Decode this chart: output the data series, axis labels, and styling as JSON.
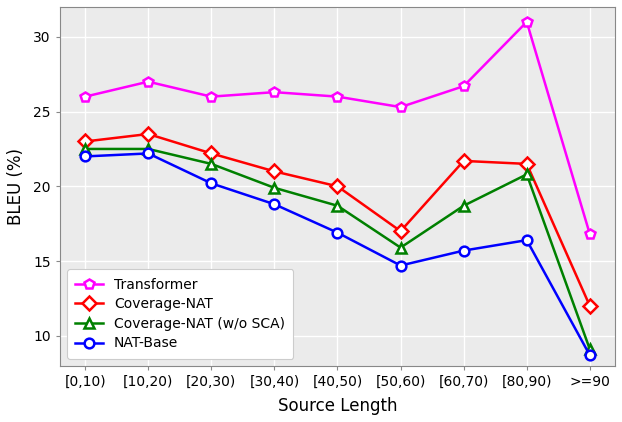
{
  "categories": [
    "[0,10)",
    "[10,20)",
    "[20,30)",
    "[30,40)",
    "[40,50)",
    "[50,60)",
    "[60,70)",
    "[80,90)",
    ">=90"
  ],
  "transformer": [
    26.0,
    27.0,
    26.0,
    26.3,
    26.0,
    25.3,
    26.7,
    31.0,
    16.8
  ],
  "coverage_nat": [
    23.0,
    23.5,
    22.2,
    21.0,
    20.0,
    17.0,
    21.7,
    21.5,
    12.0
  ],
  "coverage_nat_wo_sca": [
    22.5,
    22.5,
    21.5,
    19.9,
    18.7,
    15.9,
    18.7,
    20.8,
    9.1
  ],
  "nat_base": [
    22.0,
    22.2,
    20.2,
    18.8,
    16.9,
    14.7,
    15.7,
    16.4,
    8.7
  ],
  "colors": {
    "transformer": "#FF00FF",
    "coverage_nat": "#FF0000",
    "coverage_nat_wo_sca": "#008000",
    "nat_base": "#0000FF"
  },
  "markers": {
    "transformer": "p",
    "coverage_nat": "D",
    "coverage_nat_wo_sca": "^",
    "nat_base": "o"
  },
  "labels": {
    "transformer": "Transformer",
    "coverage_nat": "Coverage-NAT",
    "coverage_nat_wo_sca": "Coverage-NAT (w/o SCA)",
    "nat_base": "NAT-Base"
  },
  "xlabel": "Source Length",
  "ylabel": "BLEU (%)",
  "ylim": [
    8,
    32
  ],
  "yticks": [
    10,
    15,
    20,
    25,
    30
  ],
  "label_fontsize": 12,
  "tick_fontsize": 10,
  "legend_fontsize": 10,
  "linewidth": 1.8,
  "markersize": 7,
  "background_color": "#EBEBEB"
}
